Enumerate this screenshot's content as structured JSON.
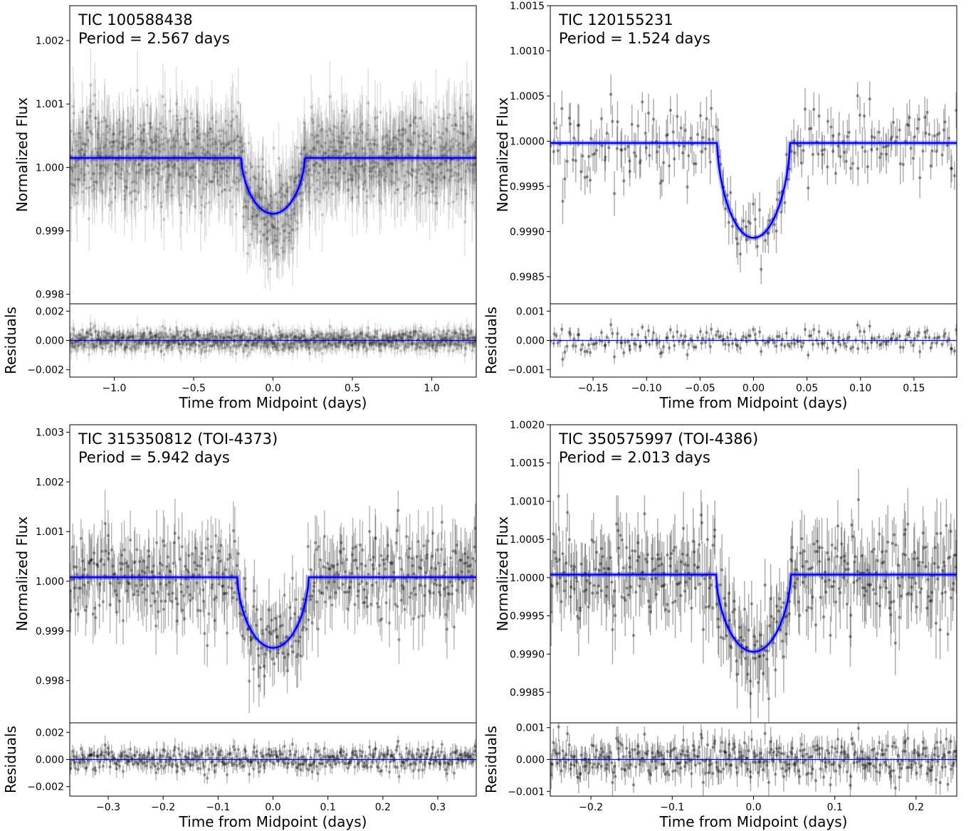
{
  "chart_data": [
    {
      "type": "scatter",
      "title_line1": "TIC 100588438",
      "title_line2": "Period = 2.567 days",
      "ylabel": "Normalized Flux",
      "res_ylabel": "Residuals",
      "xlabel": "Time from Midpoint (days)",
      "xlim": [
        -1.28,
        1.28
      ],
      "ylim": [
        0.99785,
        1.00255
      ],
      "res_ylim": [
        -0.0025,
        0.0025
      ],
      "xticks": [
        -1.0,
        -0.5,
        0.0,
        0.5,
        1.0
      ],
      "xtick_labels": [
        "−1.0",
        "−0.5",
        "0.0",
        "0.5",
        "1.0"
      ],
      "yticks": [
        0.998,
        0.999,
        1.0,
        1.001,
        1.002
      ],
      "ytick_labels": [
        "0.998",
        "0.999",
        "1.000",
        "1.001",
        "1.002"
      ],
      "res_yticks": [
        -0.002,
        0.0,
        0.002
      ],
      "res_ytick_labels": [
        "−0.002",
        "0.000",
        "0.002"
      ],
      "model": {
        "baseline": 1.00015,
        "depth": 0.00088,
        "t_total": 0.2,
        "t_flat": 0.02
      },
      "noise": {
        "n": 1400,
        "sigma": 0.00035,
        "err": 0.00045
      },
      "point_color": "#000000",
      "point_alpha": 0.12,
      "model_color": "#0000ff"
    },
    {
      "type": "scatter",
      "title_line1": "TIC 120155231",
      "title_line2": "Period = 1.524 days",
      "ylabel": "Normalized Flux",
      "res_ylabel": "Residuals",
      "xlabel": "Time from Midpoint (days)",
      "xlim": [
        -0.19,
        0.19
      ],
      "ylim": [
        0.9982,
        1.0015
      ],
      "res_ylim": [
        -0.00125,
        0.00125
      ],
      "xticks": [
        -0.15,
        -0.1,
        -0.05,
        0.0,
        0.05,
        0.1,
        0.15
      ],
      "xtick_labels": [
        "−0.15",
        "−0.10",
        "−0.05",
        "0.00",
        "0.05",
        "0.10",
        "0.15"
      ],
      "yticks": [
        0.9985,
        0.999,
        0.9995,
        1.0,
        1.0005,
        1.001,
        1.0015
      ],
      "ytick_labels": [
        "0.9985",
        "0.9990",
        "0.9995",
        "1.0000",
        "1.0005",
        "1.0010",
        "1.0015"
      ],
      "res_yticks": [
        -0.001,
        0.0,
        0.001
      ],
      "res_ytick_labels": [
        "−0.001",
        "0.000",
        "0.001"
      ],
      "model": {
        "baseline": 0.99998,
        "depth": 0.00105,
        "t_total": 0.034,
        "t_flat": 0.014
      },
      "noise": {
        "n": 230,
        "sigma": 0.00022,
        "err": 0.00018
      },
      "point_color": "#000000",
      "point_alpha": 0.32,
      "model_color": "#0000ff"
    },
    {
      "type": "scatter",
      "title_line1": "TIC 315350812 (TOI-4373)",
      "title_line2": "Period = 5.942 days",
      "ylabel": "Normalized Flux",
      "res_ylabel": "Residuals",
      "xlabel": "Time from Midpoint (days)",
      "xlim": [
        -0.37,
        0.37
      ],
      "ylim": [
        0.99715,
        1.00315
      ],
      "res_ylim": [
        -0.0027,
        0.0027
      ],
      "xticks": [
        -0.3,
        -0.2,
        -0.1,
        0.0,
        0.1,
        0.2,
        0.3
      ],
      "xtick_labels": [
        "−0.3",
        "−0.2",
        "−0.1",
        "0.0",
        "0.1",
        "0.2",
        "0.3"
      ],
      "yticks": [
        0.998,
        0.999,
        1.0,
        1.001,
        1.002,
        1.003
      ],
      "ytick_labels": [
        "0.998",
        "0.999",
        "1.000",
        "1.001",
        "1.002",
        "1.003"
      ],
      "res_yticks": [
        -0.002,
        0.0,
        0.002
      ],
      "res_ytick_labels": [
        "−0.002",
        "0.000",
        "0.002"
      ],
      "model": {
        "baseline": 1.00008,
        "depth": 0.00142,
        "t_total": 0.065,
        "t_flat": 0.008
      },
      "noise": {
        "n": 520,
        "sigma": 0.00045,
        "err": 0.0005
      },
      "point_color": "#000000",
      "point_alpha": 0.28,
      "model_color": "#0000ff"
    },
    {
      "type": "scatter",
      "title_line1": "TIC 350575997 (TOI-4386)",
      "title_line2": "Period = 2.013 days",
      "ylabel": "Normalized Flux",
      "res_ylabel": "Residuals",
      "xlabel": "Time from Midpoint (days)",
      "xlim": [
        -0.25,
        0.25
      ],
      "ylim": [
        0.9981,
        1.002
      ],
      "res_ylim": [
        -0.00115,
        0.00115
      ],
      "xticks": [
        -0.2,
        -0.1,
        0.0,
        0.1,
        0.2
      ],
      "xtick_labels": [
        "−0.2",
        "−0.1",
        "0.0",
        "0.1",
        "0.2"
      ],
      "yticks": [
        0.9985,
        0.999,
        0.9995,
        1.0,
        1.0005,
        1.001,
        1.0015,
        1.002
      ],
      "ytick_labels": [
        "0.9985",
        "0.9990",
        "0.9995",
        "1.0000",
        "1.0005",
        "1.0010",
        "1.0015",
        "1.0020"
      ],
      "res_yticks": [
        -0.001,
        0.0,
        0.001
      ],
      "res_ytick_labels": [
        "−0.001",
        "0.000",
        "0.001"
      ],
      "model": {
        "baseline": 1.00004,
        "depth": 0.00101,
        "t_total": 0.046,
        "t_flat": 0.006
      },
      "noise": {
        "n": 420,
        "sigma": 0.0003,
        "err": 0.00035
      },
      "point_color": "#000000",
      "point_alpha": 0.32,
      "model_color": "#0000ff"
    }
  ]
}
